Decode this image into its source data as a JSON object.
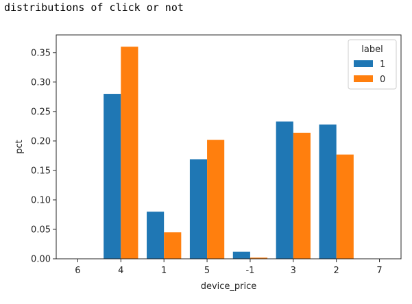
{
  "caption": "distributions of click or not",
  "chart_data": {
    "type": "bar",
    "xlabel": "device_price",
    "ylabel": "pct",
    "categories": [
      "6",
      "4",
      "1",
      "5",
      "-1",
      "3",
      "2",
      "7"
    ],
    "series": [
      {
        "name": "1",
        "color": "#1f77b4",
        "values": [
          0,
          0.28,
          0.08,
          0.169,
          0.012,
          0.233,
          0.228,
          0
        ]
      },
      {
        "name": "0",
        "color": "#ff7f0e",
        "values": [
          0,
          0.36,
          0.045,
          0.202,
          0.002,
          0.214,
          0.177,
          0
        ]
      }
    ],
    "ylim": [
      0,
      0.38
    ],
    "yticks": [
      0.0,
      0.05,
      0.1,
      0.15,
      0.2,
      0.25,
      0.3,
      0.35
    ],
    "ytick_labels": [
      "0.00",
      "0.05",
      "0.10",
      "0.15",
      "0.20",
      "0.25",
      "0.30",
      "0.35"
    ],
    "legend": {
      "title": "label",
      "placement": "top-right"
    },
    "grid": false
  }
}
